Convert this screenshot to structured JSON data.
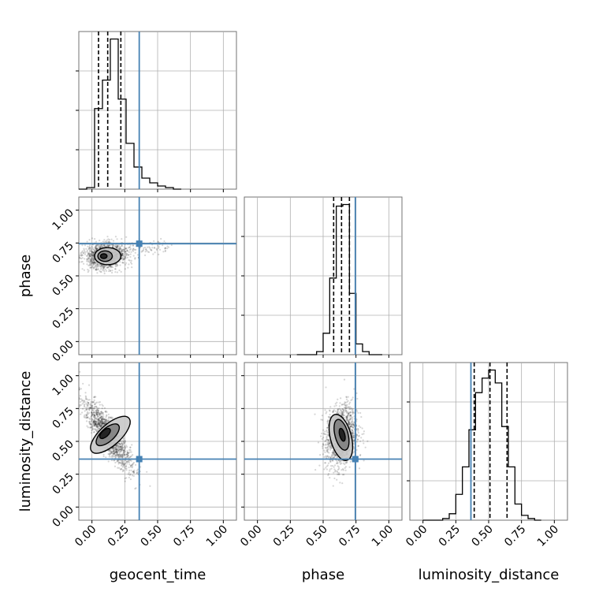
{
  "chart_data": {
    "type": "corner",
    "parameters": [
      "geocent_time",
      "phase",
      "luminosity_distance"
    ],
    "axis_labels": {
      "x": [
        "geocent_time",
        "phase",
        "luminosity_distance"
      ],
      "y": [
        "",
        "phase",
        "luminosity_distance"
      ]
    },
    "xlim": [
      -0.1,
      1.1
    ],
    "ylim_2d": [
      -0.1,
      1.1
    ],
    "tick_values": [
      0.0,
      0.25,
      0.5,
      0.75,
      1.0
    ],
    "tick_labels": [
      "0.00",
      "0.25",
      "0.50",
      "0.75",
      "1.00"
    ],
    "grid": true,
    "truths": {
      "geocent_time": 0.36,
      "phase": 0.745,
      "luminosity_distance": 0.365
    },
    "quantiles": {
      "geocent_time": [
        0.05,
        0.12,
        0.22
      ],
      "phase": [
        0.58,
        0.64,
        0.7
      ],
      "luminosity_distance": [
        0.39,
        0.51,
        0.64
      ]
    },
    "histograms": {
      "geocent_time": {
        "edges": [
          -0.1,
          -0.04,
          0.02,
          0.08,
          0.14,
          0.2,
          0.26,
          0.32,
          0.38,
          0.44,
          0.5,
          0.56,
          0.62,
          0.68
        ],
        "counts": [
          0.0,
          0.01,
          0.51,
          0.69,
          0.95,
          0.57,
          0.29,
          0.14,
          0.07,
          0.04,
          0.02,
          0.01,
          0.0
        ]
      },
      "phase": {
        "edges": [
          0.3,
          0.35,
          0.4,
          0.45,
          0.5,
          0.55,
          0.6,
          0.65,
          0.7,
          0.75,
          0.8,
          0.85,
          0.9,
          0.95
        ],
        "counts": [
          0.0,
          0.0,
          0.0,
          0.02,
          0.14,
          0.5,
          0.97,
          0.98,
          0.4,
          0.07,
          0.02,
          0.0,
          0.0
        ]
      },
      "luminosity_distance": {
        "edges": [
          0.0,
          0.05,
          0.1,
          0.15,
          0.2,
          0.25,
          0.3,
          0.35,
          0.4,
          0.45,
          0.5,
          0.55,
          0.6,
          0.65,
          0.7,
          0.75,
          0.8,
          0.85,
          0.9
        ],
        "counts": [
          0.0,
          0.0,
          0.0,
          0.01,
          0.04,
          0.16,
          0.33,
          0.56,
          0.79,
          0.88,
          0.93,
          0.85,
          0.58,
          0.33,
          0.1,
          0.03,
          0.01,
          0.0
        ]
      }
    },
    "scatter_2d": {
      "phase_vs_geocent_time": {
        "center": [
          0.1,
          0.65
        ],
        "spread": [
          0.08,
          0.05
        ],
        "tail": {
          "toward": [
            0.6,
            0.73
          ],
          "fraction": 0.15
        },
        "contour_levels": [
          {
            "center": [
              0.09,
              0.65
            ],
            "radius": [
              0.025,
              0.018
            ]
          },
          {
            "center": [
              0.1,
              0.65
            ],
            "radius": [
              0.055,
              0.04
            ]
          },
          {
            "center": [
              0.12,
              0.65
            ],
            "radius": [
              0.1,
              0.065
            ]
          }
        ]
      },
      "luminosity_distance_vs_geocent_time": {
        "center": [
          0.12,
          0.55
        ],
        "spread": [
          0.09,
          0.13
        ],
        "correlation": -0.85,
        "contour_levels": [
          {
            "center": [
              0.1,
              0.56
            ],
            "radius": [
              0.025,
              0.05
            ]
          },
          {
            "center": [
              0.12,
              0.55
            ],
            "radius": [
              0.05,
              0.11
            ]
          },
          {
            "center": [
              0.14,
              0.55
            ],
            "radius": [
              0.08,
              0.19
            ]
          }
        ]
      },
      "luminosity_distance_vs_phase": {
        "center": [
          0.64,
          0.54
        ],
        "spread": [
          0.06,
          0.12
        ],
        "correlation": 0.2,
        "contour_levels": [
          {
            "center": [
              0.645,
              0.55
            ],
            "radius": [
              0.02,
              0.05
            ]
          },
          {
            "center": [
              0.64,
              0.55
            ],
            "radius": [
              0.05,
              0.12
            ]
          },
          {
            "center": [
              0.635,
              0.53
            ],
            "radius": [
              0.08,
              0.18
            ]
          }
        ]
      }
    },
    "colors": {
      "truth": "#4682b4",
      "hist": "#000000",
      "grid": "#b0b0b0",
      "scatter": "#000000",
      "contour_fills": [
        "#1a1a1a",
        "#808080",
        "#c8c8c8"
      ]
    }
  }
}
